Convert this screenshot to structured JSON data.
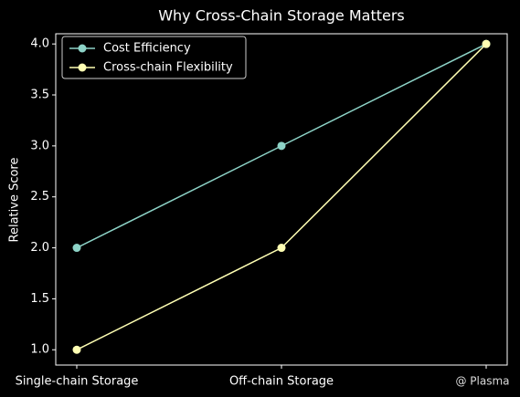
{
  "chart_data": {
    "type": "line",
    "title": "Why Cross-Chain Storage Matters",
    "ylabel": "Relative Score",
    "categories": [
      "Single-chain Storage",
      "Off-chain Storage",
      null
    ],
    "series": [
      {
        "name": "Cost Efficiency",
        "color": "#8dd3c7",
        "values": [
          2,
          3,
          4
        ]
      },
      {
        "name": "Cross-chain Flexibility",
        "color": "#ffffb3",
        "values": [
          1,
          2,
          4
        ]
      }
    ],
    "ylim": [
      0.85,
      4.1
    ],
    "yticks": [
      {
        "value": 1,
        "label": "1.0"
      },
      {
        "value": 1.5,
        "label": "1.5"
      },
      {
        "value": 2,
        "label": "2.0"
      },
      {
        "value": 2.5,
        "label": "2.5"
      },
      {
        "value": 3,
        "label": "3.0"
      },
      {
        "value": 3.5,
        "label": "3.5"
      },
      {
        "value": 4,
        "label": "4.0"
      }
    ],
    "legend": "upper left",
    "grid": false,
    "annotation": "@ Plasma"
  }
}
